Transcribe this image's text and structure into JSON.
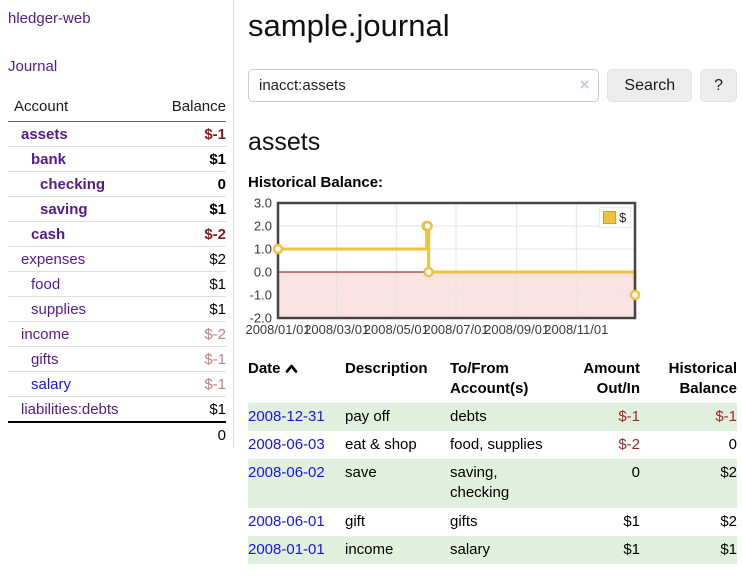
{
  "colors": {
    "accent_purple": "#551a8b",
    "link_blue": "#1515e8",
    "negative_strong": "#8b1717",
    "negative_dim": "#c47e7e",
    "register_negative": "#9e2626",
    "row_green": "#e1f0dc",
    "chart_line": "#edc240",
    "chart_border": "#454545",
    "chart_grid": "#e4e4e4",
    "chart_zero_line": "#8b0000",
    "chart_negative_fill": "#fbe3e3"
  },
  "sidebar": {
    "app_title": "hledger-web",
    "journal_link": "Journal",
    "accounts": {
      "header_account": "Account",
      "header_balance": "Balance",
      "rows": [
        {
          "name": "assets",
          "balance": "$-1",
          "depth": 1,
          "bold": true,
          "visited": true
        },
        {
          "name": "bank",
          "balance": "$1",
          "depth": 2,
          "bold": true,
          "visited": true
        },
        {
          "name": "checking",
          "balance": "0",
          "depth": 3,
          "bold": true,
          "visited": true
        },
        {
          "name": "saving",
          "balance": "$1",
          "depth": 3,
          "bold": true,
          "visited": true
        },
        {
          "name": "cash",
          "balance": "$-2",
          "depth": 2,
          "bold": true,
          "visited": true
        },
        {
          "name": "expenses",
          "balance": "$2",
          "depth": 1,
          "bold": false,
          "visited": true
        },
        {
          "name": "food",
          "balance": "$1",
          "depth": 2,
          "bold": false,
          "visited": true
        },
        {
          "name": "supplies",
          "balance": "$1",
          "depth": 2,
          "bold": false,
          "visited": true
        },
        {
          "name": "income",
          "balance": "$-2",
          "depth": 1,
          "bold": false,
          "visited": true
        },
        {
          "name": "gifts",
          "balance": "$-1",
          "depth": 2,
          "bold": false,
          "visited": true
        },
        {
          "name": "salary",
          "balance": "$-1",
          "depth": 2,
          "bold": false,
          "visited": false
        },
        {
          "name": "liabilities:debts",
          "balance": "$1",
          "depth": 1,
          "bold": false,
          "visited": true
        }
      ],
      "total": "0"
    }
  },
  "main": {
    "title": "sample.journal",
    "search": {
      "value": "inacct:assets",
      "clear_label": "×",
      "button_label": "Search",
      "help_label": "?"
    },
    "account_heading": "assets",
    "chart_heading": "Historical Balance:"
  },
  "chart_data": {
    "type": "line",
    "step": true,
    "title": "Historical Balance:",
    "legend": {
      "label": "$",
      "position": "top-right"
    },
    "series": [
      {
        "name": "$",
        "color": "#edc240",
        "points": [
          [
            "2008/01/01",
            1.0
          ],
          [
            "2008/06/01",
            2.0
          ],
          [
            "2008/06/02",
            2.0
          ],
          [
            "2008/06/03",
            0.0
          ],
          [
            "2008/12/31",
            -1.0
          ]
        ]
      }
    ],
    "x_range": [
      "2008/01/01",
      "2008/12/31"
    ],
    "ylim": [
      -2.0,
      3.0
    ],
    "yticks": [
      3.0,
      2.0,
      1.0,
      0.0,
      -1.0,
      -2.0
    ],
    "xticks": [
      "2008/01/01",
      "2008/03/01",
      "2008/05/01",
      "2008/07/01",
      "2008/09/01",
      "2008/11/01"
    ],
    "grid": true,
    "negative_region_shaded": true
  },
  "register": {
    "headers": {
      "date": "Date",
      "description": "Description",
      "accounts_line1": "To/From",
      "accounts_line2": "Account(s)",
      "amount_line1": "Amount",
      "amount_line2": "Out/In",
      "balance_line1": "Historical",
      "balance_line2": "Balance"
    },
    "rows": [
      {
        "date": "2008-12-31",
        "description": "pay off",
        "accounts": "debts",
        "amount": "$-1",
        "balance": "$-1"
      },
      {
        "date": "2008-06-03",
        "description": "eat & shop",
        "accounts": "food, supplies",
        "amount": "$-2",
        "balance": "0"
      },
      {
        "date": "2008-06-02",
        "description": "save",
        "accounts": "saving, checking",
        "amount": "0",
        "balance": "$2"
      },
      {
        "date": "2008-06-01",
        "description": "gift",
        "accounts": "gifts",
        "amount": "$1",
        "balance": "$2"
      },
      {
        "date": "2008-01-01",
        "description": "income",
        "accounts": "salary",
        "amount": "$1",
        "balance": "$1"
      }
    ]
  }
}
